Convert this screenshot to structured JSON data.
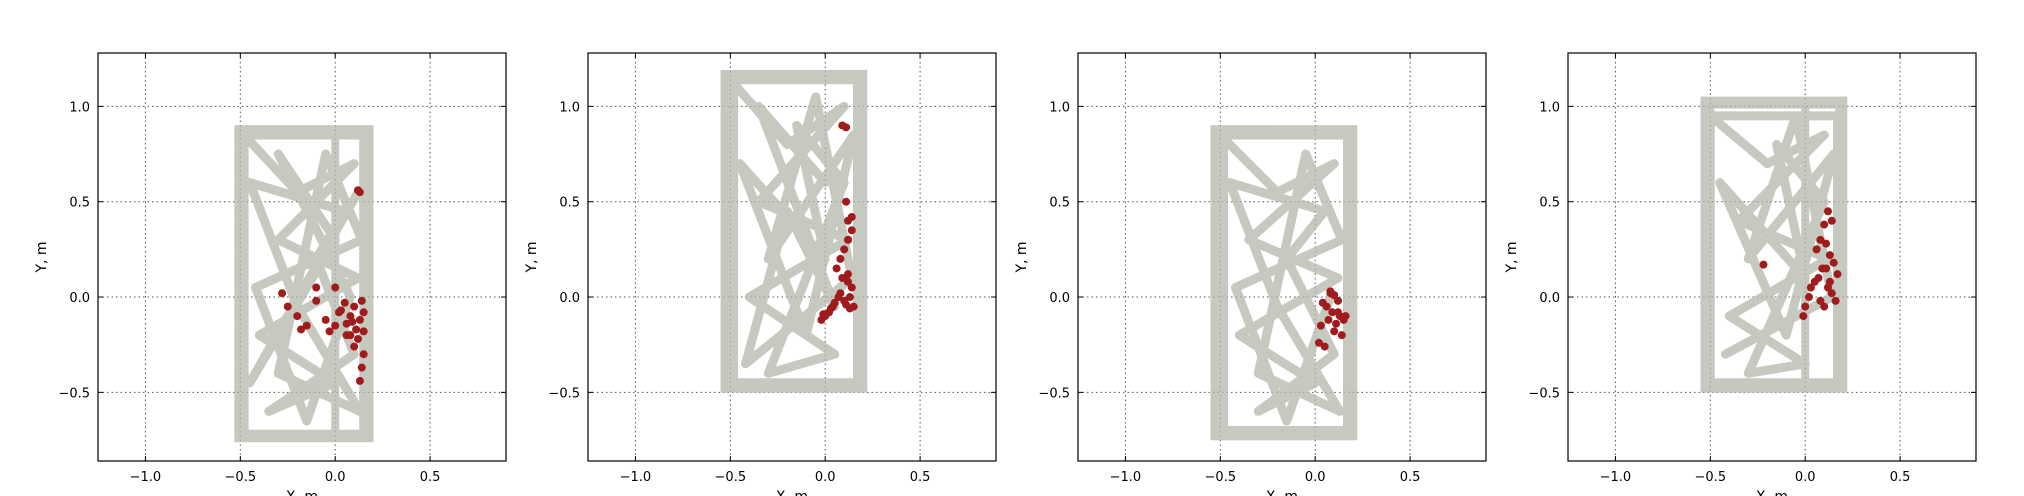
{
  "theme": {
    "trajectory_color": "#b3b8ac",
    "event_color": "#a01c1c",
    "grid_color": "#555555",
    "frame_color": "#000000",
    "background": "#ffffff"
  },
  "chart_data": [
    {
      "type": "scatter",
      "xlabel": "X, m",
      "ylabel": "Y, m",
      "xlim": [
        -1.25,
        0.9
      ],
      "ylim": [
        -0.86,
        1.28
      ],
      "xticks": [
        -1.0,
        -0.5,
        0.0,
        0.5
      ],
      "xtick_labels": [
        "−1.0",
        "−0.5",
        "0.0",
        "0.5"
      ],
      "yticks": [
        -0.5,
        0.0,
        0.5,
        1.0
      ],
      "ytick_labels": [
        "−0.5",
        "0.0",
        "0.5",
        "1.0"
      ],
      "grid": true,
      "trajectory": {
        "x_range": [
          -0.5,
          0.17
        ],
        "y_range": [
          -0.73,
          0.87
        ],
        "vertical_dividers": [
          -0.48,
          0.0
        ],
        "path": [
          [
            -0.48,
            0.85
          ],
          [
            0.15,
            0.85
          ],
          [
            0.15,
            -0.72
          ],
          [
            -0.48,
            -0.72
          ],
          [
            -0.48,
            0.85
          ],
          [
            -0.2,
            0.55
          ],
          [
            0.1,
            0.7
          ],
          [
            -0.3,
            0.3
          ],
          [
            0.12,
            0.1
          ],
          [
            -0.4,
            -0.2
          ],
          [
            0.0,
            -0.45
          ],
          [
            -0.35,
            -0.6
          ],
          [
            0.1,
            -0.3
          ],
          [
            -0.1,
            0.2
          ],
          [
            0.05,
            0.45
          ],
          [
            -0.45,
            0.6
          ],
          [
            -0.2,
            -0.05
          ],
          [
            0.13,
            -0.6
          ],
          [
            -0.3,
            -0.4
          ],
          [
            -0.05,
            0.75
          ],
          [
            0.14,
            0.3
          ],
          [
            -0.42,
            0.05
          ],
          [
            -0.15,
            -0.65
          ],
          [
            0.08,
            0.0
          ],
          [
            -0.3,
            0.75
          ],
          [
            0.0,
            0.3
          ],
          [
            -0.45,
            -0.45
          ],
          [
            0.12,
            0.55
          ]
        ]
      },
      "events": {
        "x": [
          0.12,
          0.13,
          -0.28,
          -0.1,
          0.0,
          0.05,
          0.1,
          0.15,
          -0.2,
          -0.05,
          0.02,
          0.08,
          0.13,
          -0.15,
          0.0,
          0.06,
          0.11,
          0.15,
          -0.25,
          -0.1,
          0.03,
          0.09,
          0.14,
          0.06,
          0.12,
          0.15,
          0.1,
          0.14,
          0.13,
          -0.18,
          -0.03,
          0.08
        ],
        "y": [
          0.56,
          0.55,
          0.02,
          0.05,
          0.05,
          -0.03,
          -0.05,
          -0.08,
          -0.1,
          -0.12,
          -0.08,
          -0.1,
          -0.12,
          -0.15,
          -0.15,
          -0.14,
          -0.17,
          -0.18,
          -0.05,
          -0.02,
          -0.07,
          -0.13,
          -0.02,
          -0.2,
          -0.22,
          -0.3,
          -0.26,
          -0.37,
          -0.44,
          -0.17,
          -0.18,
          -0.2
        ]
      }
    },
    {
      "type": "scatter",
      "xlabel": "X, m",
      "ylabel": "Y, m",
      "xlim": [
        -1.25,
        0.9
      ],
      "ylim": [
        -0.86,
        1.28
      ],
      "xticks": [
        -1.0,
        -0.5,
        0.0,
        0.5
      ],
      "xtick_labels": [
        "−1.0",
        "−0.5",
        "0.0",
        "0.5"
      ],
      "yticks": [
        -0.5,
        0.0,
        0.5,
        1.0
      ],
      "ytick_labels": [
        "−0.5",
        "0.0",
        "0.5",
        "1.0"
      ],
      "grid": true,
      "trajectory": {
        "x_range": [
          -0.52,
          0.19
        ],
        "y_range": [
          -0.47,
          1.16
        ],
        "vertical_dividers": [
          -0.48
        ],
        "path": [
          [
            -0.5,
            1.14
          ],
          [
            0.17,
            1.14
          ],
          [
            0.17,
            -0.45
          ],
          [
            -0.5,
            -0.45
          ],
          [
            -0.5,
            1.14
          ],
          [
            -0.2,
            0.8
          ],
          [
            0.1,
            1.0
          ],
          [
            -0.35,
            0.5
          ],
          [
            0.12,
            0.3
          ],
          [
            -0.4,
            0.0
          ],
          [
            0.05,
            -0.3
          ],
          [
            -0.3,
            -0.4
          ],
          [
            0.1,
            0.6
          ],
          [
            -0.15,
            0.9
          ],
          [
            0.0,
            0.2
          ],
          [
            -0.45,
            0.7
          ],
          [
            -0.1,
            -0.2
          ],
          [
            0.15,
            0.85
          ],
          [
            -0.3,
            0.2
          ],
          [
            -0.05,
            1.05
          ],
          [
            0.14,
            0.1
          ],
          [
            -0.42,
            -0.35
          ],
          [
            -0.2,
            0.45
          ],
          [
            0.05,
            -0.05
          ],
          [
            -0.35,
            1.0
          ],
          [
            0.0,
            0.6
          ]
        ]
      },
      "events": {
        "x": [
          0.09,
          0.11,
          0.11,
          0.12,
          0.14,
          0.12,
          0.1,
          0.08,
          0.06,
          0.09,
          0.12,
          0.14,
          0.13,
          0.1,
          0.07,
          0.05,
          0.03,
          0.02,
          0.0,
          -0.02,
          -0.01,
          0.04,
          0.08,
          0.11,
          0.13,
          0.15,
          0.14,
          0.12
        ],
        "y": [
          0.9,
          0.89,
          0.5,
          0.4,
          0.35,
          0.3,
          0.25,
          0.2,
          0.15,
          0.1,
          0.08,
          0.05,
          0.0,
          -0.02,
          0.0,
          -0.03,
          -0.06,
          -0.08,
          -0.1,
          -0.12,
          -0.09,
          -0.05,
          0.02,
          -0.04,
          -0.06,
          -0.05,
          0.42,
          0.12
        ]
      }
    },
    {
      "type": "scatter",
      "xlabel": "X, m",
      "ylabel": "Y, m",
      "xlim": [
        -1.25,
        0.9
      ],
      "ylim": [
        -0.86,
        1.28
      ],
      "xticks": [
        -1.0,
        -0.5,
        0.0,
        0.5
      ],
      "xtick_labels": [
        "−1.0",
        "−0.5",
        "0.0",
        "0.5"
      ],
      "yticks": [
        -0.5,
        0.0,
        0.5,
        1.0
      ],
      "ytick_labels": [
        "−0.5",
        "0.0",
        "0.5",
        "1.0"
      ],
      "grid": true,
      "trajectory": {
        "x_range": [
          -0.52,
          0.19
        ],
        "y_range": [
          -0.72,
          0.87
        ],
        "vertical_dividers": [
          -0.48
        ],
        "path": [
          [
            -0.5,
            0.85
          ],
          [
            0.17,
            0.85
          ],
          [
            0.17,
            -0.7
          ],
          [
            -0.5,
            -0.7
          ],
          [
            -0.5,
            0.85
          ],
          [
            -0.2,
            0.55
          ],
          [
            0.1,
            0.7
          ],
          [
            -0.35,
            0.3
          ],
          [
            0.12,
            0.1
          ],
          [
            -0.4,
            -0.2
          ],
          [
            0.0,
            -0.45
          ],
          [
            -0.3,
            -0.6
          ],
          [
            0.1,
            -0.3
          ],
          [
            -0.15,
            0.2
          ],
          [
            0.05,
            0.45
          ],
          [
            -0.45,
            0.6
          ],
          [
            -0.2,
            -0.05
          ],
          [
            0.13,
            -0.6
          ],
          [
            -0.3,
            -0.4
          ],
          [
            -0.05,
            0.75
          ],
          [
            0.14,
            0.3
          ],
          [
            -0.42,
            0.05
          ],
          [
            -0.15,
            -0.65
          ],
          [
            0.08,
            0.0
          ]
        ]
      },
      "events": {
        "x": [
          0.08,
          0.1,
          0.12,
          0.06,
          0.04,
          0.09,
          0.13,
          0.15,
          0.11,
          0.07,
          0.03,
          0.02,
          0.05,
          0.1,
          0.14,
          0.12,
          0.16,
          0.08
        ],
        "y": [
          0.03,
          0.01,
          -0.02,
          -0.05,
          -0.03,
          -0.08,
          -0.1,
          -0.12,
          -0.14,
          -0.12,
          -0.15,
          -0.24,
          -0.26,
          -0.18,
          -0.2,
          -0.08,
          -0.1,
          0.02
        ]
      }
    },
    {
      "type": "scatter",
      "xlabel": "X, m",
      "ylabel": "Y, m",
      "xlim": [
        -1.25,
        0.9
      ],
      "ylim": [
        -0.86,
        1.28
      ],
      "xticks": [
        -1.0,
        -0.5,
        0.0,
        0.5
      ],
      "xtick_labels": [
        "−1.0",
        "−0.5",
        "0.0",
        "0.5"
      ],
      "yticks": [
        -0.5,
        0.0,
        0.5,
        1.0
      ],
      "ytick_labels": [
        "−0.5",
        "0.0",
        "0.5",
        "1.0"
      ],
      "grid": true,
      "trajectory": {
        "x_range": [
          -0.52,
          0.19
        ],
        "y_range": [
          -0.47,
          1.02
        ],
        "vertical_dividers": [
          -0.5,
          0.0
        ],
        "path": [
          [
            -0.5,
            0.95
          ],
          [
            0.17,
            0.95
          ],
          [
            0.17,
            -0.45
          ],
          [
            -0.5,
            -0.45
          ],
          [
            -0.5,
            0.95
          ],
          [
            -0.2,
            0.7
          ],
          [
            0.1,
            0.85
          ],
          [
            -0.35,
            0.4
          ],
          [
            0.12,
            0.2
          ],
          [
            -0.4,
            -0.1
          ],
          [
            0.0,
            -0.35
          ],
          [
            -0.3,
            -0.4
          ],
          [
            0.1,
            0.5
          ],
          [
            -0.15,
            0.8
          ],
          [
            0.0,
            0.1
          ],
          [
            -0.45,
            0.6
          ],
          [
            -0.1,
            -0.2
          ],
          [
            0.15,
            0.75
          ],
          [
            -0.3,
            0.2
          ],
          [
            -0.05,
            0.95
          ],
          [
            0.14,
            0.0
          ],
          [
            -0.42,
            -0.3
          ]
        ]
      },
      "events": {
        "x": [
          0.12,
          0.14,
          0.1,
          0.08,
          0.06,
          0.11,
          0.13,
          0.15,
          0.17,
          0.09,
          0.07,
          0.05,
          0.03,
          0.02,
          0.12,
          0.14,
          0.16,
          0.1,
          0.08,
          -0.22,
          0.0,
          -0.01,
          0.11,
          0.13
        ],
        "y": [
          0.45,
          0.4,
          0.38,
          0.3,
          0.25,
          0.28,
          0.22,
          0.18,
          0.12,
          0.15,
          0.1,
          0.08,
          0.05,
          0.0,
          0.05,
          0.02,
          -0.02,
          -0.05,
          -0.02,
          0.17,
          -0.05,
          -0.1,
          0.15,
          0.08
        ]
      }
    }
  ]
}
